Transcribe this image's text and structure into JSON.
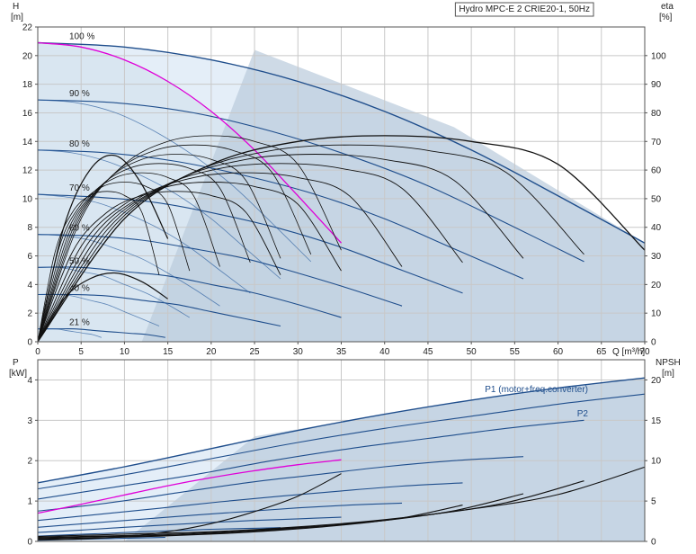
{
  "chart_data": [
    {
      "type": "line",
      "title": "Hydro MPC-E 2 CRIE20-1, 50Hz",
      "ylabel": "H",
      "yunit": "[m]",
      "y2label": "eta",
      "y2unit": "[%]",
      "xlabel": "Q [m³/h]",
      "xlim": [
        0,
        70
      ],
      "ylim": [
        0,
        22
      ],
      "y2lim": [
        0,
        110
      ],
      "x_ticks": [
        0,
        5,
        10,
        15,
        20,
        25,
        30,
        35,
        40,
        45,
        50,
        55,
        60,
        65,
        70
      ],
      "y_ticks": [
        0,
        2,
        4,
        6,
        8,
        10,
        12,
        14,
        16,
        18,
        20,
        22
      ],
      "y2_ticks": [
        0,
        10,
        20,
        30,
        40,
        50,
        60,
        70,
        80,
        90,
        100
      ],
      "grid": true,
      "speed_labels": [
        "100 %",
        "90 %",
        "80 %",
        "70 %",
        "60 %",
        "50 %",
        "40 %",
        "21 %"
      ],
      "speed_fractions": [
        1.0,
        0.9,
        0.8,
        0.7,
        0.6,
        0.5,
        0.4,
        0.21
      ],
      "head_curves_one_pump": [
        {
          "label": "100 %",
          "x": [
            0,
            5,
            10,
            15,
            20,
            25,
            30,
            35
          ],
          "y": [
            20.9,
            20.6,
            19.7,
            18.2,
            16.1,
            13.4,
            10.2,
            6.9
          ]
        },
        {
          "label": "90 %",
          "x": [
            0,
            4.5,
            9,
            13.5,
            18,
            22.5,
            27,
            31.5
          ],
          "y": [
            16.9,
            16.7,
            16.0,
            14.7,
            13.0,
            10.9,
            8.3,
            5.6
          ]
        },
        {
          "label": "80 %",
          "x": [
            0,
            4,
            8,
            12,
            16,
            20,
            24,
            28
          ],
          "y": [
            13.4,
            13.2,
            12.6,
            11.6,
            10.3,
            8.6,
            6.5,
            4.4
          ]
        },
        {
          "label": "70 %",
          "x": [
            0,
            3.5,
            7,
            10.5,
            14,
            17.5,
            21,
            24.5
          ],
          "y": [
            10.3,
            10.1,
            9.7,
            8.9,
            7.9,
            6.6,
            5.0,
            3.4
          ]
        },
        {
          "label": "60 %",
          "x": [
            0,
            3,
            6,
            9,
            12,
            15,
            18,
            21
          ],
          "y": [
            7.5,
            7.4,
            7.1,
            6.5,
            5.8,
            4.8,
            3.7,
            2.5
          ]
        },
        {
          "label": "50 %",
          "x": [
            0,
            2.5,
            5,
            7.5,
            10,
            12.5,
            15,
            17.5
          ],
          "y": [
            5.2,
            5.2,
            4.9,
            4.6,
            4.0,
            3.4,
            2.6,
            1.7
          ]
        },
        {
          "label": "40 %",
          "x": [
            0,
            2,
            4,
            6,
            8,
            10,
            12,
            14
          ],
          "y": [
            3.3,
            3.3,
            3.2,
            2.9,
            2.6,
            2.1,
            1.6,
            1.1
          ]
        },
        {
          "label": "21 %",
          "x": [
            0,
            1.05,
            2.1,
            3.15,
            4.2,
            5.25,
            6.3,
            7.35
          ],
          "y": [
            0.9,
            0.9,
            0.9,
            0.8,
            0.7,
            0.6,
            0.5,
            0.3
          ]
        }
      ],
      "head_curves_two_pumps": [
        {
          "label": "100 %",
          "x": [
            0,
            10,
            20,
            30,
            40,
            50,
            60,
            70
          ],
          "y": [
            20.9,
            20.6,
            19.7,
            18.2,
            16.1,
            13.4,
            10.2,
            6.9
          ]
        },
        {
          "label": "90 %",
          "x": [
            0,
            9,
            18,
            27,
            36,
            45,
            54,
            63
          ],
          "y": [
            16.9,
            16.7,
            16.0,
            14.7,
            13.0,
            10.9,
            8.3,
            5.6
          ]
        },
        {
          "label": "80 %",
          "x": [
            0,
            8,
            16,
            24,
            32,
            40,
            48,
            56
          ],
          "y": [
            13.4,
            13.2,
            12.6,
            11.6,
            10.3,
            8.6,
            6.5,
            4.4
          ]
        },
        {
          "label": "70 %",
          "x": [
            0,
            7,
            14,
            21,
            28,
            35,
            42,
            49
          ],
          "y": [
            10.3,
            10.1,
            9.7,
            8.9,
            7.9,
            6.6,
            5.0,
            3.4
          ]
        },
        {
          "label": "60 %",
          "x": [
            0,
            6,
            12,
            18,
            24,
            30,
            36,
            42
          ],
          "y": [
            7.5,
            7.4,
            7.1,
            6.5,
            5.8,
            4.8,
            3.7,
            2.5
          ]
        },
        {
          "label": "50 %",
          "x": [
            0,
            5,
            10,
            15,
            20,
            25,
            30,
            35
          ],
          "y": [
            5.2,
            5.2,
            4.9,
            4.6,
            4.0,
            3.4,
            2.6,
            1.7
          ]
        },
        {
          "label": "40 %",
          "x": [
            0,
            4,
            8,
            12,
            16,
            20,
            24,
            28
          ],
          "y": [
            3.3,
            3.3,
            3.2,
            2.9,
            2.6,
            2.1,
            1.6,
            1.1
          ]
        },
        {
          "label": "21 %",
          "x": [
            0,
            2.1,
            4.2,
            6.3,
            8.4,
            10.5,
            12.6,
            14.7
          ],
          "y": [
            0.9,
            0.9,
            0.9,
            0.8,
            0.7,
            0.6,
            0.5,
            0.3
          ]
        }
      ],
      "max_operating_curve": {
        "x": [
          0,
          10,
          20,
          30,
          40,
          50,
          60,
          70
        ],
        "y": [
          20.9,
          20.6,
          19.7,
          18.2,
          16.1,
          13.4,
          10.2,
          6.9
        ]
      },
      "one_pump_head_highlight": {
        "x": [
          0,
          5,
          10,
          15,
          20,
          25,
          30,
          35
        ],
        "y": [
          20.9,
          20.6,
          19.7,
          18.2,
          16.1,
          13.4,
          10.2,
          6.9
        ]
      },
      "efficiency_eta_one_pump_max": [
        {
          "x": [
            0,
            5,
            10,
            15,
            20,
            25,
            30,
            35
          ],
          "y": [
            0,
            43,
            62,
            70,
            72,
            70,
            62,
            32
          ]
        }
      ],
      "efficiency_eta_two_pumps_max": [
        {
          "x": [
            0,
            10,
            20,
            30,
            40,
            50,
            60,
            70
          ],
          "y": [
            0,
            43,
            62,
            70,
            72,
            70,
            62,
            32
          ]
        }
      ],
      "efficiency_small_arches": [
        {
          "x": [
            0,
            3,
            6,
            9,
            12,
            15
          ],
          "y": [
            0,
            40,
            60,
            65,
            55,
            36
          ]
        },
        {
          "x": [
            0,
            3,
            6,
            9,
            12,
            15
          ],
          "y": [
            0,
            15,
            22,
            24,
            21,
            15
          ]
        }
      ]
    },
    {
      "type": "line",
      "ylabel": "P",
      "yunit": "[kW]",
      "y2label": "NPSH",
      "y2unit": "[m]",
      "xlim": [
        0,
        70
      ],
      "ylim": [
        0,
        4.5
      ],
      "y2lim": [
        0,
        22.5
      ],
      "y_ticks": [
        0,
        1,
        2,
        3,
        4
      ],
      "y2_ticks": [
        0,
        5,
        10,
        15,
        20
      ],
      "grid": true,
      "series_labels": [
        "P1 (motor+freq.converter)",
        "P2"
      ],
      "p1_max": {
        "x": [
          0,
          10,
          20,
          30,
          40,
          50,
          60,
          70
        ],
        "y": [
          1.45,
          1.85,
          2.3,
          2.75,
          3.15,
          3.5,
          3.8,
          4.05
        ]
      },
      "p2_max": {
        "x": [
          0,
          10,
          20,
          30,
          40,
          50,
          60,
          70
        ],
        "y": [
          1.3,
          1.65,
          2.05,
          2.45,
          2.8,
          3.1,
          3.4,
          3.65
        ]
      },
      "power_speed_curves": [
        {
          "x": [
            0,
            9,
            18,
            27,
            36,
            45,
            54,
            63
          ],
          "y": [
            1.05,
            1.35,
            1.65,
            2.0,
            2.3,
            2.55,
            2.8,
            3.0
          ]
        },
        {
          "x": [
            0,
            8,
            16,
            24,
            32,
            40,
            48,
            56
          ],
          "y": [
            0.75,
            0.95,
            1.2,
            1.45,
            1.65,
            1.85,
            2.0,
            2.1
          ]
        },
        {
          "x": [
            0,
            7,
            14,
            21,
            28,
            35,
            42,
            49
          ],
          "y": [
            0.52,
            0.67,
            0.82,
            0.98,
            1.12,
            1.25,
            1.37,
            1.45
          ]
        },
        {
          "x": [
            0,
            6,
            12,
            18,
            24,
            30,
            36,
            42
          ],
          "y": [
            0.35,
            0.45,
            0.55,
            0.65,
            0.74,
            0.83,
            0.9,
            0.95
          ]
        },
        {
          "x": [
            0,
            5,
            10,
            15,
            20,
            25,
            30,
            35
          ],
          "y": [
            0.22,
            0.28,
            0.35,
            0.41,
            0.47,
            0.52,
            0.56,
            0.6
          ]
        },
        {
          "x": [
            0,
            4,
            8,
            12,
            16,
            20,
            24,
            28
          ],
          "y": [
            0.13,
            0.17,
            0.2,
            0.24,
            0.27,
            0.3,
            0.32,
            0.34
          ]
        },
        {
          "x": [
            0,
            2.1,
            4.2,
            6.3,
            8.4,
            10.5,
            12.6,
            14.7
          ],
          "y": [
            0.03,
            0.04,
            0.05,
            0.06,
            0.07,
            0.08,
            0.09,
            0.1
          ]
        }
      ],
      "one_pump_power_highlight": {
        "x": [
          0,
          5,
          10,
          15,
          20,
          25,
          30,
          35
        ],
        "y": [
          0.7,
          0.92,
          1.15,
          1.38,
          1.58,
          1.75,
          1.9,
          2.02
        ]
      },
      "npsh_curves": [
        {
          "x": [
            0,
            10,
            20,
            30,
            40,
            50,
            60,
            70
          ],
          "y": [
            0.6,
            0.9,
            1.2,
            1.8,
            2.7,
            4.0,
            5.8,
            9.2
          ]
        },
        {
          "x": [
            0,
            9,
            18,
            27,
            36,
            45,
            54,
            63
          ],
          "y": [
            0.5,
            0.7,
            1.0,
            1.5,
            2.2,
            3.3,
            4.8,
            7.5
          ]
        },
        {
          "x": [
            0,
            8,
            16,
            24,
            32,
            40,
            48,
            56
          ],
          "y": [
            0.4,
            0.6,
            0.8,
            1.2,
            1.8,
            2.6,
            3.8,
            5.9
          ]
        },
        {
          "x": [
            0,
            7,
            14,
            21,
            28,
            35,
            42,
            49
          ],
          "y": [
            0.3,
            0.45,
            0.65,
            0.95,
            1.4,
            2.0,
            2.9,
            4.5
          ]
        },
        {
          "x": [
            0,
            5,
            10,
            15,
            20,
            25,
            30,
            35
          ],
          "y": [
            0.2,
            0.3,
            0.6,
            1.2,
            2.2,
            3.7,
            5.6,
            8.4
          ]
        }
      ]
    }
  ]
}
